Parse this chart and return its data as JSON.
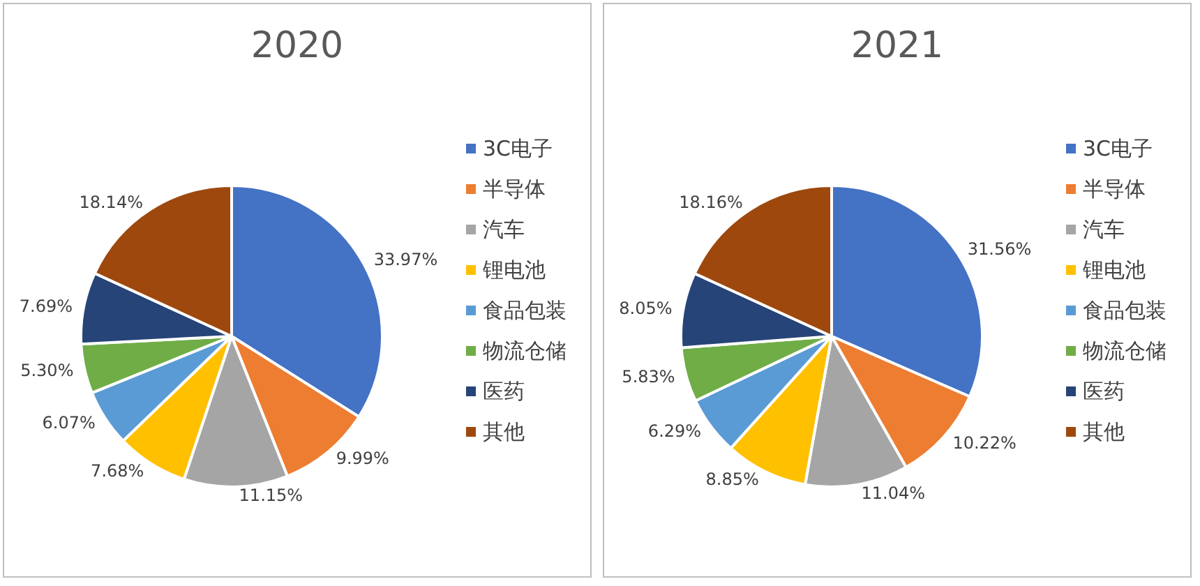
{
  "chart_data": [
    {
      "type": "pie",
      "title": "2020",
      "categories": [
        "3C电子",
        "半导体",
        "汽车",
        "锂电池",
        "食品包装",
        "物流仓储",
        "医药",
        "其他"
      ],
      "values": [
        33.97,
        9.99,
        11.15,
        7.68,
        6.07,
        5.3,
        7.69,
        18.14
      ],
      "value_labels": [
        "33.97%",
        "9.99%",
        "11.15%",
        "7.68%",
        "6.07%",
        "5.30%",
        "7.69%",
        "18.14%"
      ],
      "colors": [
        "#4472c4",
        "#ed7d31",
        "#a5a5a5",
        "#ffc000",
        "#5b9bd5",
        "#70ad47",
        "#264478",
        "#9e480e"
      ],
      "legend": "right"
    },
    {
      "type": "pie",
      "title": "2021",
      "categories": [
        "3C电子",
        "半导体",
        "汽车",
        "锂电池",
        "食品包装",
        "物流仓储",
        "医药",
        "其他"
      ],
      "values": [
        31.56,
        10.22,
        11.04,
        8.85,
        6.29,
        5.83,
        8.05,
        18.16
      ],
      "value_labels": [
        "31.56%",
        "10.22%",
        "11.04%",
        "8.85%",
        "6.29%",
        "5.83%",
        "8.05%",
        "18.16%"
      ],
      "colors": [
        "#4472c4",
        "#ed7d31",
        "#a5a5a5",
        "#ffc000",
        "#5b9bd5",
        "#70ad47",
        "#264478",
        "#9e480e"
      ],
      "legend": "right"
    }
  ]
}
